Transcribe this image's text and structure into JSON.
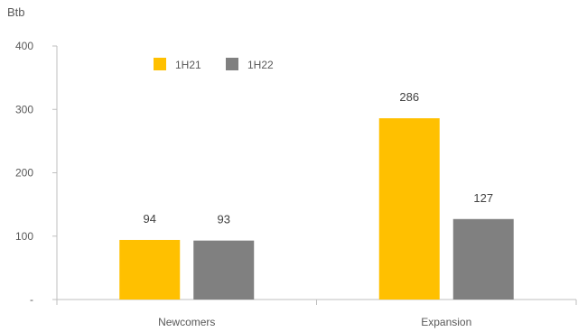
{
  "chart_data": {
    "type": "bar",
    "unit_label": "Btb",
    "categories": [
      "Newcomers",
      "Expansion"
    ],
    "series": [
      {
        "name": "1H21",
        "values": [
          94,
          286
        ],
        "color": "#FFC000"
      },
      {
        "name": "1H22",
        "values": [
          93,
          127
        ],
        "color": "#808080"
      }
    ],
    "ylim": [
      0,
      400
    ],
    "yticks": [
      0,
      100,
      200,
      300,
      400
    ],
    "ytick_labels": [
      "-",
      "100",
      "200",
      "300",
      "400"
    ],
    "data_labels": [
      [
        "94",
        "286"
      ],
      [
        "93",
        "127"
      ]
    ],
    "grid": false,
    "legend_position": "top-left"
  }
}
